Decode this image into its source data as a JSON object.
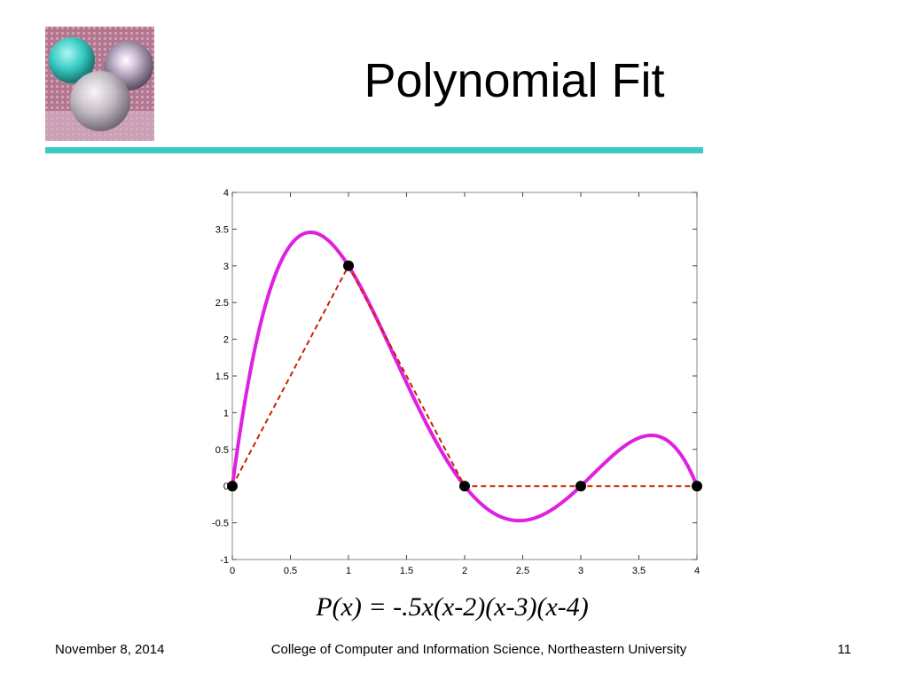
{
  "slide": {
    "title": "Polynomial Fit",
    "formula": "P(x) = -.5x(x-2)(x-3)(x-4)",
    "footer_left": "November 8, 2014",
    "footer_center": "College of Computer and Information Science, Northeastern University",
    "footer_right": "11",
    "accent_color": "#3cc9c4",
    "logo_icon": "glass-spheres-logo"
  },
  "chart_data": {
    "type": "line",
    "title": "",
    "xlabel": "",
    "ylabel": "",
    "xlim": [
      0,
      4
    ],
    "ylim": [
      -1,
      4
    ],
    "grid": false,
    "x_ticks": [
      0,
      0.5,
      1,
      1.5,
      2,
      2.5,
      3,
      3.5,
      4
    ],
    "y_ticks": [
      -1,
      -0.5,
      0,
      0.5,
      1,
      1.5,
      2,
      2.5,
      3,
      3.5,
      4
    ],
    "polynomial_coefficients": [
      0,
      12,
      -13,
      4.5,
      -0.5
    ],
    "series": [
      {
        "style": "solid",
        "color": "#e020e0",
        "kind": "polynomial-curve"
      },
      {
        "style": "dashed",
        "color": "#cc2200",
        "kind": "piecewise-linear",
        "x": [
          0,
          1,
          2,
          3,
          4
        ],
        "y": [
          0,
          3,
          0,
          0,
          0
        ]
      }
    ],
    "points": {
      "color": "#000000",
      "x": [
        0,
        1,
        2,
        3,
        4
      ],
      "y": [
        0,
        3,
        0,
        0,
        0
      ]
    }
  }
}
